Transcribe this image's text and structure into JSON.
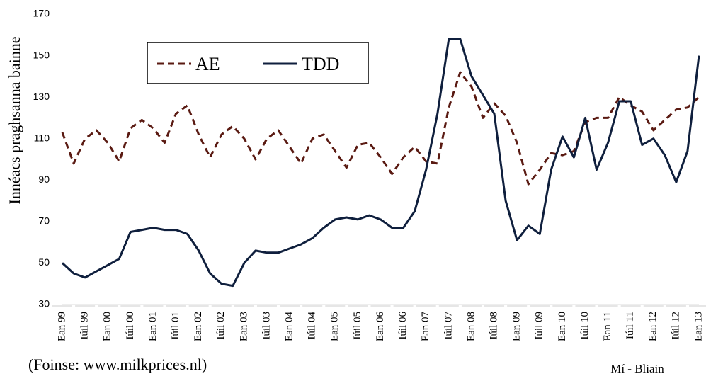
{
  "chart_data": {
    "type": "line",
    "y_label": "Innéacs praghsanna bainne",
    "x_label": "Mí  - Bliain",
    "source": "(Foinse: www.milkprices.nl)",
    "categories": [
      "Ean 99",
      null,
      "Iúil 99",
      null,
      "Ean 00",
      null,
      "Iúil 00",
      null,
      "Ean 01",
      null,
      "Iúil 01",
      null,
      "Ean 02",
      null,
      "Iúil 02",
      null,
      "Ean 03",
      null,
      "Iúil 03",
      null,
      "Ean 04",
      null,
      "Iúil 04",
      null,
      "Ean 05",
      null,
      "Iúil 05",
      null,
      "Ean 06",
      null,
      "Iúil 06",
      null,
      "Ean 07",
      null,
      "Iúil 07",
      null,
      "Ean 08",
      null,
      "Iúil 08",
      null,
      "Ean 09",
      null,
      "Iúil 09",
      null,
      "Ean 10",
      null,
      "Iúil 10",
      null,
      "Ean 11",
      null,
      "Iúil 11",
      null,
      "Ean 12",
      null,
      "Iúil 12",
      null,
      "Ean 13"
    ],
    "series": [
      {
        "name": "AE",
        "color": "#5a1a12",
        "dashed": true,
        "values": [
          113,
          98,
          110,
          114,
          108,
          99,
          115,
          119,
          115,
          108,
          122,
          126,
          112,
          101,
          112,
          116,
          110,
          100,
          110,
          114,
          106,
          98,
          110,
          112,
          104,
          96,
          107,
          108,
          101,
          93,
          101,
          106,
          99,
          98,
          125,
          142,
          135,
          120,
          127,
          121,
          108,
          88,
          95,
          103,
          102,
          104,
          118,
          120,
          120,
          130,
          126,
          123,
          114,
          119,
          124,
          125,
          130
        ]
      },
      {
        "name": "TDD",
        "color": "#0f1f3d",
        "dashed": false,
        "values": [
          50,
          45,
          43,
          46,
          49,
          52,
          65,
          66,
          67,
          66,
          66,
          64,
          56,
          45,
          40,
          39,
          50,
          56,
          55,
          55,
          57,
          59,
          62,
          67,
          71,
          72,
          71,
          73,
          71,
          67,
          67,
          75,
          95,
          122,
          158,
          158,
          140,
          131,
          122,
          80,
          61,
          68,
          64,
          95,
          111,
          101,
          120,
          95,
          108,
          128,
          128,
          107,
          110,
          102,
          89,
          104,
          150
        ]
      }
    ],
    "ylim": [
      30,
      170
    ],
    "yticks": [
      30,
      50,
      70,
      90,
      110,
      130,
      150,
      170
    ]
  }
}
